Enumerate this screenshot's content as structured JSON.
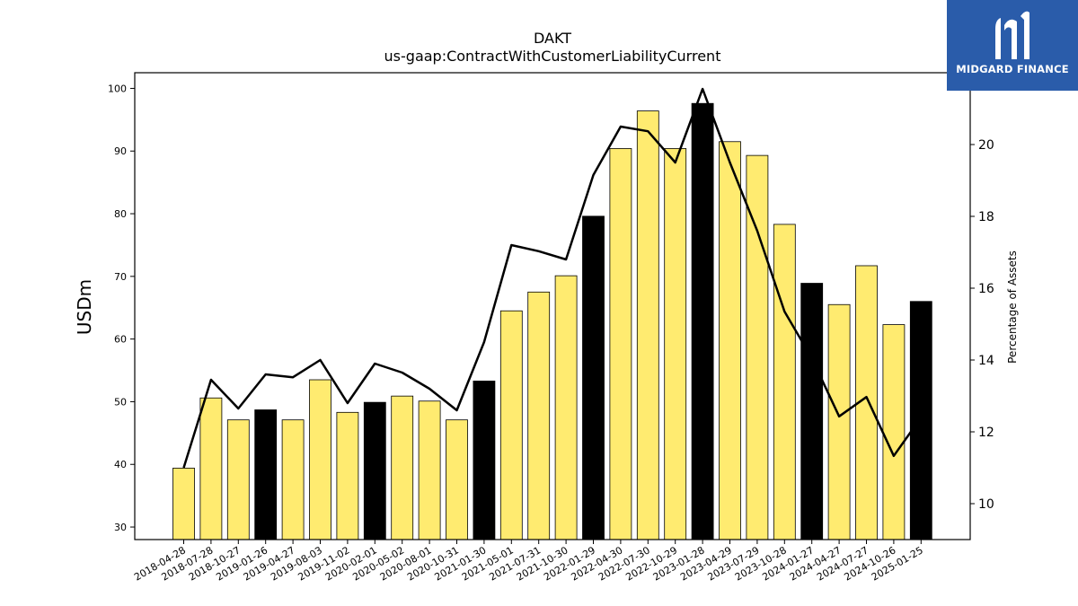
{
  "chart_data": {
    "type": "bar",
    "title": "DAKT",
    "subtitle": "us-gaap:ContractWithCustomerLiabilityCurrent",
    "ylabel": "USDm",
    "y2label": "Percentage of Assets",
    "ylim": [
      28,
      102.5
    ],
    "y2lim": [
      9,
      22
    ],
    "yticks": [
      30,
      40,
      50,
      60,
      70,
      80,
      90,
      100
    ],
    "y2ticks": [
      10,
      12,
      14,
      16,
      18,
      20
    ],
    "categories": [
      "2018-04-28",
      "2018-07-28",
      "2018-10-27",
      "2019-01-26",
      "2019-04-27",
      "2019-08-03",
      "2019-11-02",
      "2020-02-01",
      "2020-05-02",
      "2020-08-01",
      "2020-10-31",
      "2021-01-30",
      "2021-05-01",
      "2021-07-31",
      "2021-10-30",
      "2022-01-29",
      "2022-04-30",
      "2022-07-30",
      "2022-10-29",
      "2023-01-28",
      "2023-04-29",
      "2023-07-29",
      "2023-10-28",
      "2024-01-27",
      "2024-04-27",
      "2024-07-27",
      "2024-10-26",
      "2025-01-25"
    ],
    "series": [
      {
        "kind": "bar",
        "values": [
          39.4,
          50.6,
          47.1,
          48.7,
          47.1,
          53.5,
          48.3,
          49.9,
          50.9,
          50.1,
          47.1,
          53.3,
          64.5,
          67.5,
          70.1,
          79.6,
          90.4,
          96.4,
          90.4,
          97.6,
          91.5,
          89.3,
          78.3,
          68.9,
          65.5,
          71.7,
          62.3,
          66.0
        ],
        "highlight": [
          false,
          false,
          false,
          true,
          false,
          false,
          false,
          true,
          false,
          false,
          false,
          true,
          false,
          false,
          false,
          true,
          false,
          false,
          false,
          true,
          false,
          false,
          false,
          true,
          false,
          false,
          false,
          true
        ]
      },
      {
        "kind": "line",
        "axis": "right",
        "values": [
          11.0,
          13.45,
          12.65,
          13.6,
          13.52,
          14.0,
          12.8,
          13.9,
          13.65,
          13.2,
          12.6,
          14.5,
          17.2,
          17.03,
          16.8,
          19.15,
          20.5,
          20.37,
          19.5,
          21.55,
          19.5,
          17.6,
          15.35,
          14.05,
          12.43,
          12.97,
          11.33,
          12.4
        ]
      }
    ],
    "colors": {
      "bar": "#ffeb70",
      "bar_highlight": "#000000",
      "line": "#000000"
    },
    "grid": false,
    "legend": "none"
  },
  "logo": {
    "text": "MIDGARD FINANCE"
  }
}
